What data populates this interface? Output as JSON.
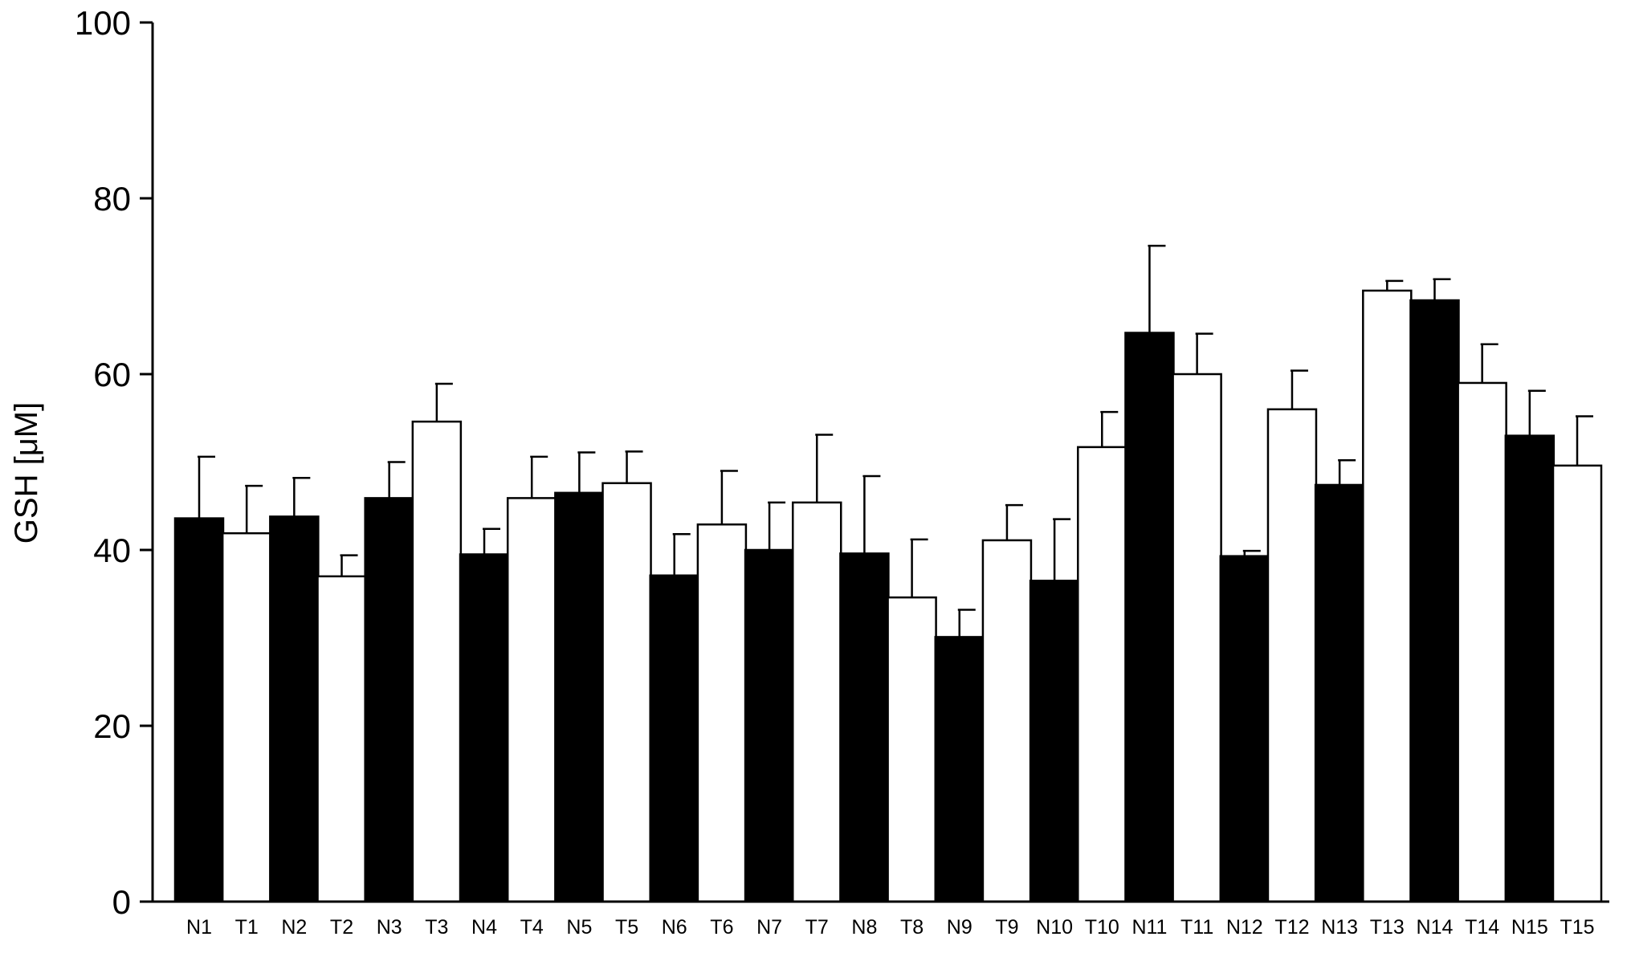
{
  "chart_data": {
    "type": "bar",
    "ylabel": "GSH [μM]",
    "xlabel": "",
    "ylim": [
      0,
      100
    ],
    "yticks": [
      0,
      20,
      40,
      60,
      80,
      100
    ],
    "grid": false,
    "legend": "none",
    "categories": [
      "N1",
      "T1",
      "N2",
      "T2",
      "N3",
      "T3",
      "N4",
      "T4",
      "N5",
      "T5",
      "N6",
      "T6",
      "N7",
      "T7",
      "N8",
      "T8",
      "N9",
      "T9",
      "N10",
      "T10",
      "N11",
      "T11",
      "N12",
      "T12",
      "N13",
      "T13",
      "N14",
      "T14",
      "N15",
      "T15"
    ],
    "values": [
      43.6,
      41.9,
      43.8,
      37.0,
      45.9,
      54.6,
      39.5,
      45.9,
      46.5,
      47.6,
      37.1,
      42.9,
      40.0,
      45.4,
      39.6,
      34.6,
      30.1,
      41.1,
      36.5,
      51.7,
      64.7,
      60.0,
      39.3,
      56.0,
      47.4,
      69.5,
      68.4,
      59.0,
      53.0,
      49.6
    ],
    "error_upper": [
      7.0,
      5.4,
      4.4,
      2.4,
      4.1,
      4.3,
      2.9,
      4.7,
      4.6,
      3.6,
      4.7,
      6.1,
      5.4,
      7.7,
      8.8,
      6.6,
      3.1,
      4.0,
      7.0,
      4.0,
      9.9,
      4.6,
      0.6,
      4.4,
      2.8,
      1.1,
      2.4,
      4.4,
      5.1,
      5.6
    ],
    "series_fill": [
      "#000000",
      "#ffffff"
    ],
    "bar_stroke": "#000000"
  }
}
